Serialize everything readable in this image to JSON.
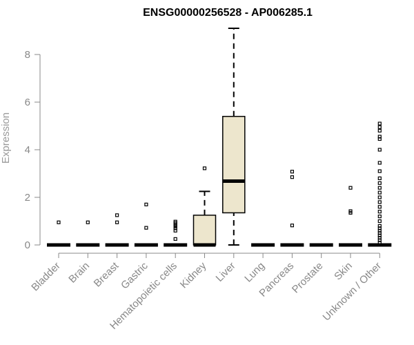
{
  "chart_data": {
    "type": "box",
    "title": "ENSG00000256528 - AP006285.1",
    "xlabel": "",
    "ylabel": "Expression",
    "ylim": [
      0,
      9.2
    ],
    "yticks": [
      0,
      2,
      4,
      6,
      8
    ],
    "categories": [
      "Bladder",
      "Brain",
      "Breast",
      "Gastric",
      "Hematopoietic cells",
      "Kidney",
      "Liver",
      "Lung",
      "Pancreas",
      "Prostate",
      "Skin",
      "Unknown / Other"
    ],
    "boxes": [
      {
        "category": "Bladder",
        "min": 0,
        "q1": 0,
        "median": 0,
        "q3": 0,
        "max": 0,
        "outliers": [
          0.95
        ]
      },
      {
        "category": "Brain",
        "min": 0,
        "q1": 0,
        "median": 0,
        "q3": 0,
        "max": 0,
        "outliers": [
          0.95
        ]
      },
      {
        "category": "Breast",
        "min": 0,
        "q1": 0,
        "median": 0,
        "q3": 0,
        "max": 0,
        "outliers": [
          0.95,
          1.25
        ]
      },
      {
        "category": "Gastric",
        "min": 0,
        "q1": 0,
        "median": 0,
        "q3": 0,
        "max": 0,
        "outliers": [
          0.72,
          1.7
        ]
      },
      {
        "category": "Hematopoietic cells",
        "min": 0,
        "q1": 0,
        "median": 0,
        "q3": 0,
        "max": 0,
        "outliers": [
          0.25,
          0.6,
          0.7,
          0.78,
          0.85,
          0.92,
          0.98
        ]
      },
      {
        "category": "Kidney",
        "min": 0,
        "q1": 0,
        "median": 0,
        "q3": 1.25,
        "max": 2.25,
        "outliers": [
          3.22
        ]
      },
      {
        "category": "Liver",
        "min": 0,
        "q1": 1.35,
        "median": 2.68,
        "q3": 5.4,
        "max": 9.1,
        "outliers": []
      },
      {
        "category": "Lung",
        "min": 0,
        "q1": 0,
        "median": 0,
        "q3": 0,
        "max": 0,
        "outliers": []
      },
      {
        "category": "Pancreas",
        "min": 0,
        "q1": 0,
        "median": 0,
        "q3": 0,
        "max": 0,
        "outliers": [
          0.82,
          2.85,
          3.08
        ]
      },
      {
        "category": "Prostate",
        "min": 0,
        "q1": 0,
        "median": 0,
        "q3": 0,
        "max": 0,
        "outliers": []
      },
      {
        "category": "Skin",
        "min": 0,
        "q1": 0,
        "median": 0,
        "q3": 0,
        "max": 0,
        "outliers": [
          1.35,
          1.42,
          2.4
        ]
      },
      {
        "category": "Unknown / Other",
        "min": 0,
        "q1": 0,
        "median": 0,
        "q3": 0,
        "max": 0,
        "outliers": [
          0.1,
          0.2,
          0.3,
          0.4,
          0.5,
          0.6,
          0.7,
          0.8,
          1.0,
          1.2,
          1.4,
          1.6,
          1.8,
          2.0,
          2.2,
          2.4,
          2.6,
          2.8,
          3.1,
          3.45,
          4.0,
          4.45,
          4.55,
          4.8,
          4.95,
          5.1
        ]
      }
    ],
    "colors": {
      "box_fill": "#ede6cd",
      "box_stroke": "#000000",
      "axis": "#888888",
      "tick_label": "#888888",
      "ylabel": "#999999"
    },
    "grid": false,
    "legend": "none"
  }
}
